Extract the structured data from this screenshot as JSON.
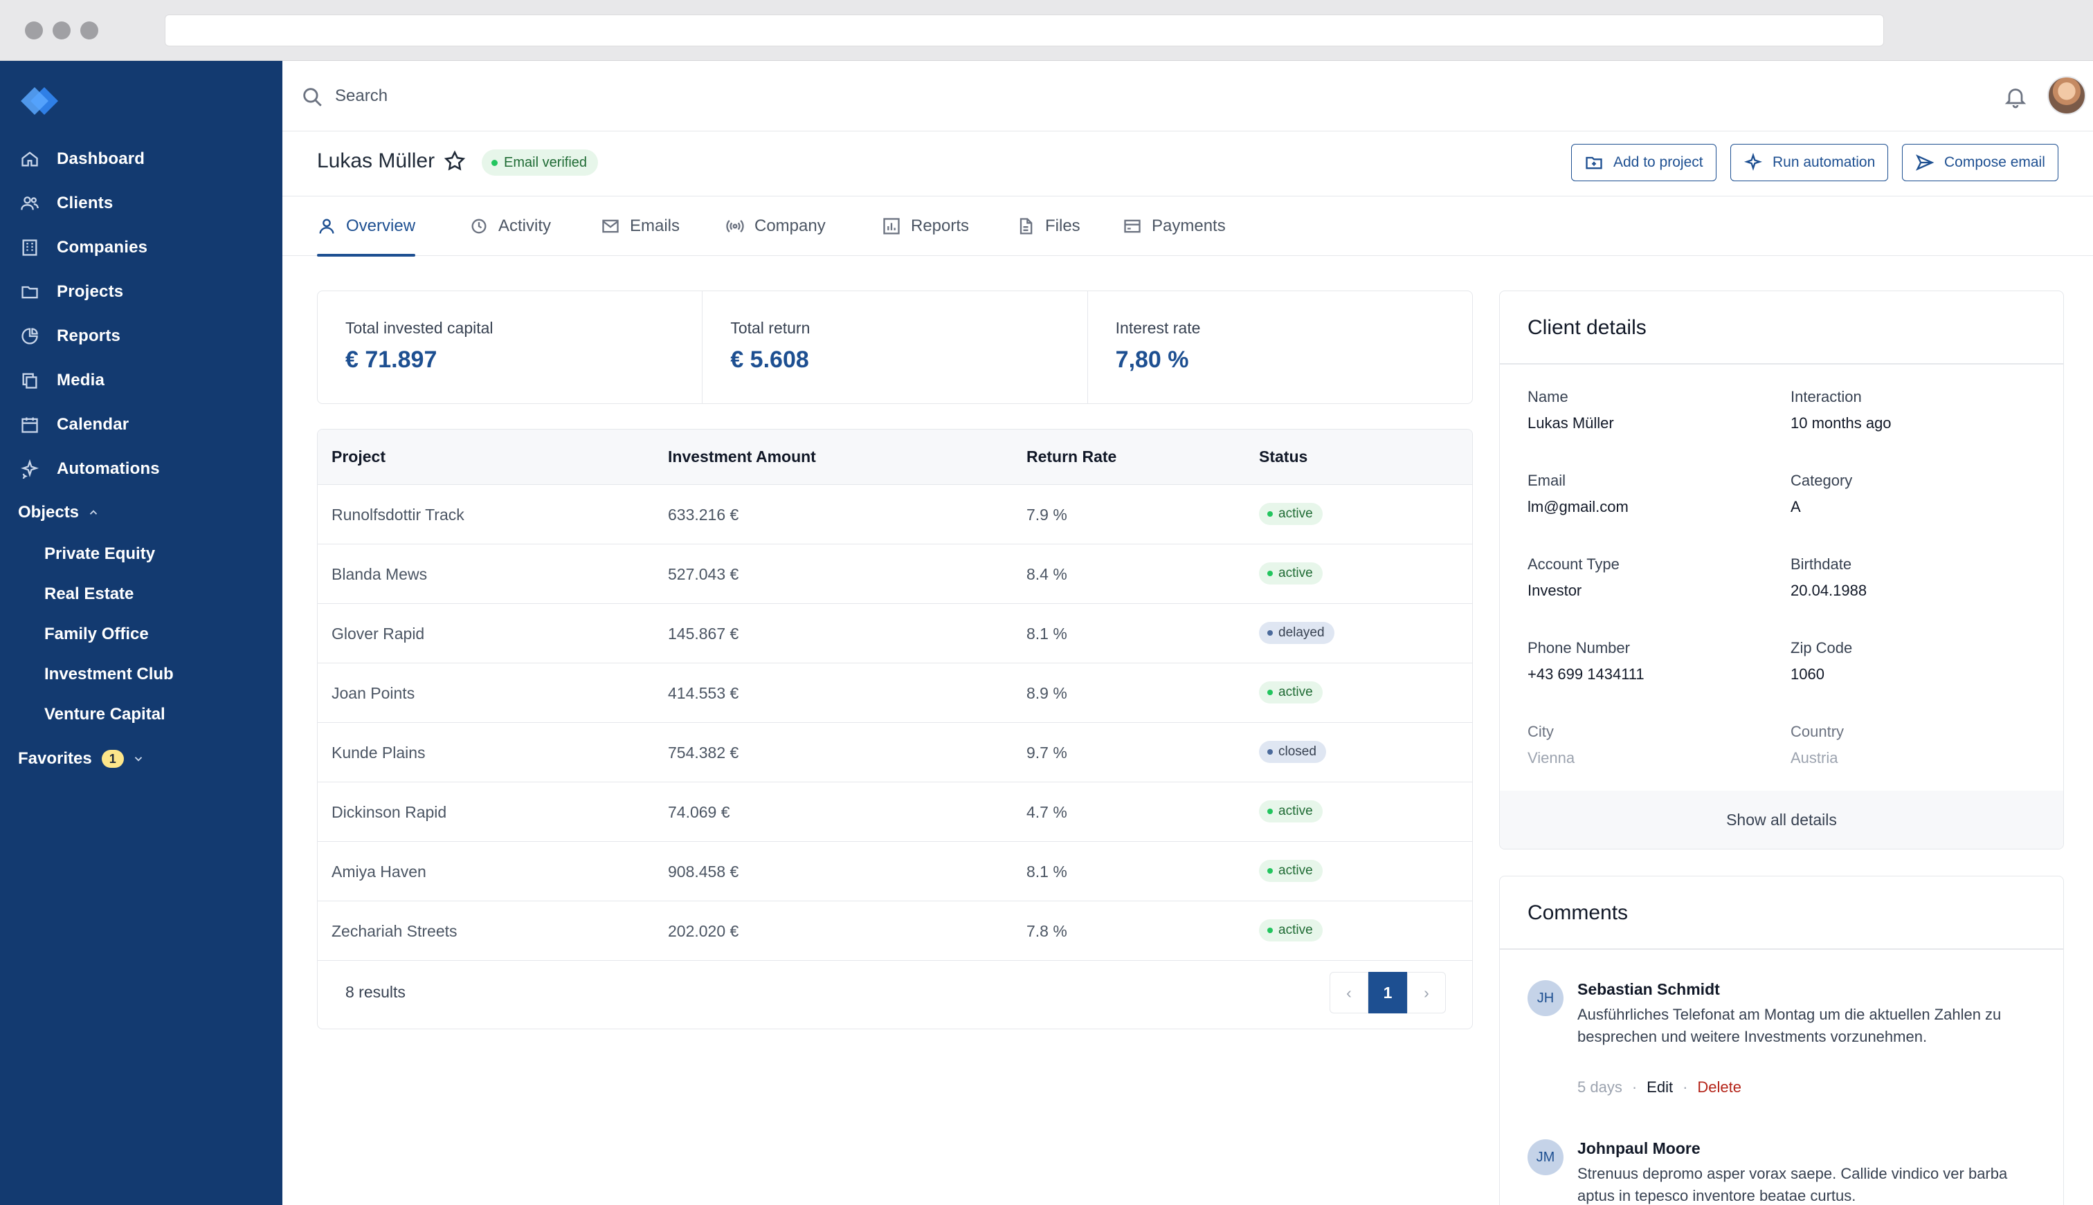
{
  "browser": {
    "address": ""
  },
  "topbar": {
    "search_placeholder": "Search"
  },
  "sidebar": {
    "nav": [
      {
        "label": "Dashboard",
        "icon": "home-icon"
      },
      {
        "label": "Clients",
        "icon": "users-icon"
      },
      {
        "label": "Companies",
        "icon": "building-icon"
      },
      {
        "label": "Projects",
        "icon": "folder-icon"
      },
      {
        "label": "Reports",
        "icon": "pie-chart-icon"
      },
      {
        "label": "Media",
        "icon": "copy-icon"
      },
      {
        "label": "Calendar",
        "icon": "calendar-icon"
      },
      {
        "label": "Automations",
        "icon": "sparkles-icon"
      }
    ],
    "objects_label": "Objects",
    "objects": [
      "Private Equity",
      "Real Estate",
      "Family Office",
      "Investment Club",
      "Venture Capital"
    ],
    "favorites_label": "Favorites",
    "favorites_count": "1"
  },
  "profile": {
    "name": "Lukas Müller",
    "verified_label": "Email verified",
    "actions": {
      "add_to_project": "Add to project",
      "run_automation": "Run automation",
      "compose_email": "Compose email"
    }
  },
  "tabs": [
    {
      "label": "Overview",
      "icon": "user-icon",
      "active": true
    },
    {
      "label": "Activity",
      "icon": "activity-icon"
    },
    {
      "label": "Emails",
      "icon": "mail-icon"
    },
    {
      "label": "Company",
      "icon": "broadcast-icon"
    },
    {
      "label": "Reports",
      "icon": "bar-chart-icon"
    },
    {
      "label": "Files",
      "icon": "file-icon"
    },
    {
      "label": "Payments",
      "icon": "credit-card-icon"
    }
  ],
  "stats": [
    {
      "label": "Total invested capital",
      "value": "€ 71.897"
    },
    {
      "label": "Total return",
      "value": "€ 5.608"
    },
    {
      "label": "Interest rate",
      "value": "7,80 %"
    }
  ],
  "table": {
    "headers": [
      "Project",
      "Investment Amount",
      "Return Rate",
      "Status"
    ],
    "rows": [
      {
        "project": "Runolfsdottir Track",
        "amount": "633.216 €",
        "rate": "7.9 %",
        "status": "active"
      },
      {
        "project": "Blanda Mews",
        "amount": "527.043 €",
        "rate": "8.4 %",
        "status": "active"
      },
      {
        "project": "Glover Rapid",
        "amount": "145.867 €",
        "rate": "8.1 %",
        "status": "delayed"
      },
      {
        "project": "Joan Points",
        "amount": "414.553 €",
        "rate": "8.9 %",
        "status": "active"
      },
      {
        "project": "Kunde Plains",
        "amount": "754.382 €",
        "rate": "9.7 %",
        "status": "closed"
      },
      {
        "project": "Dickinson Rapid",
        "amount": "74.069 €",
        "rate": "4.7 %",
        "status": "active"
      },
      {
        "project": "Amiya Haven",
        "amount": "908.458 €",
        "rate": "8.1 %",
        "status": "active"
      },
      {
        "project": "Zechariah Streets",
        "amount": "202.020 €",
        "rate": "7.8 %",
        "status": "active"
      }
    ],
    "results": "8 results",
    "page": "1",
    "prev": "‹",
    "next": "›"
  },
  "client_details": {
    "title": "Client details",
    "fields": [
      {
        "label": "Name",
        "value": "Lukas Müller"
      },
      {
        "label": "Interaction",
        "value": "10 months ago"
      },
      {
        "label": "Email",
        "value": "lm@gmail.com"
      },
      {
        "label": "Category",
        "value": "A"
      },
      {
        "label": "Account Type",
        "value": "Investor"
      },
      {
        "label": "Birthdate",
        "value": "20.04.1988"
      },
      {
        "label": "Phone Number",
        "value": "+43 699 1434111"
      },
      {
        "label": "Zip Code",
        "value": "1060"
      },
      {
        "label": "City",
        "value": "Vienna"
      },
      {
        "label": "Country",
        "value": "Austria"
      }
    ],
    "show_all": "Show all details"
  },
  "comments": {
    "title": "Comments",
    "items": [
      {
        "initials": "JH",
        "author": "Sebastian Schmidt",
        "text": "Ausführliches Telefonat am Montag um die aktuellen Zahlen zu besprechen und weitere Investments vorzunehmen.",
        "time": "5 days",
        "edit": "Edit",
        "delete": "Delete"
      },
      {
        "initials": "JM",
        "author": "Johnpaul Moore",
        "text": "Strenuus depromo asper vorax saepe. Callide vindico ver barba aptus in tepesco inventore beatae curtus."
      }
    ]
  },
  "colors": {
    "sidebar": "#133a70",
    "accent": "#1d4f91",
    "active_badge": "#e7f6ea",
    "delete": "#b42318"
  }
}
